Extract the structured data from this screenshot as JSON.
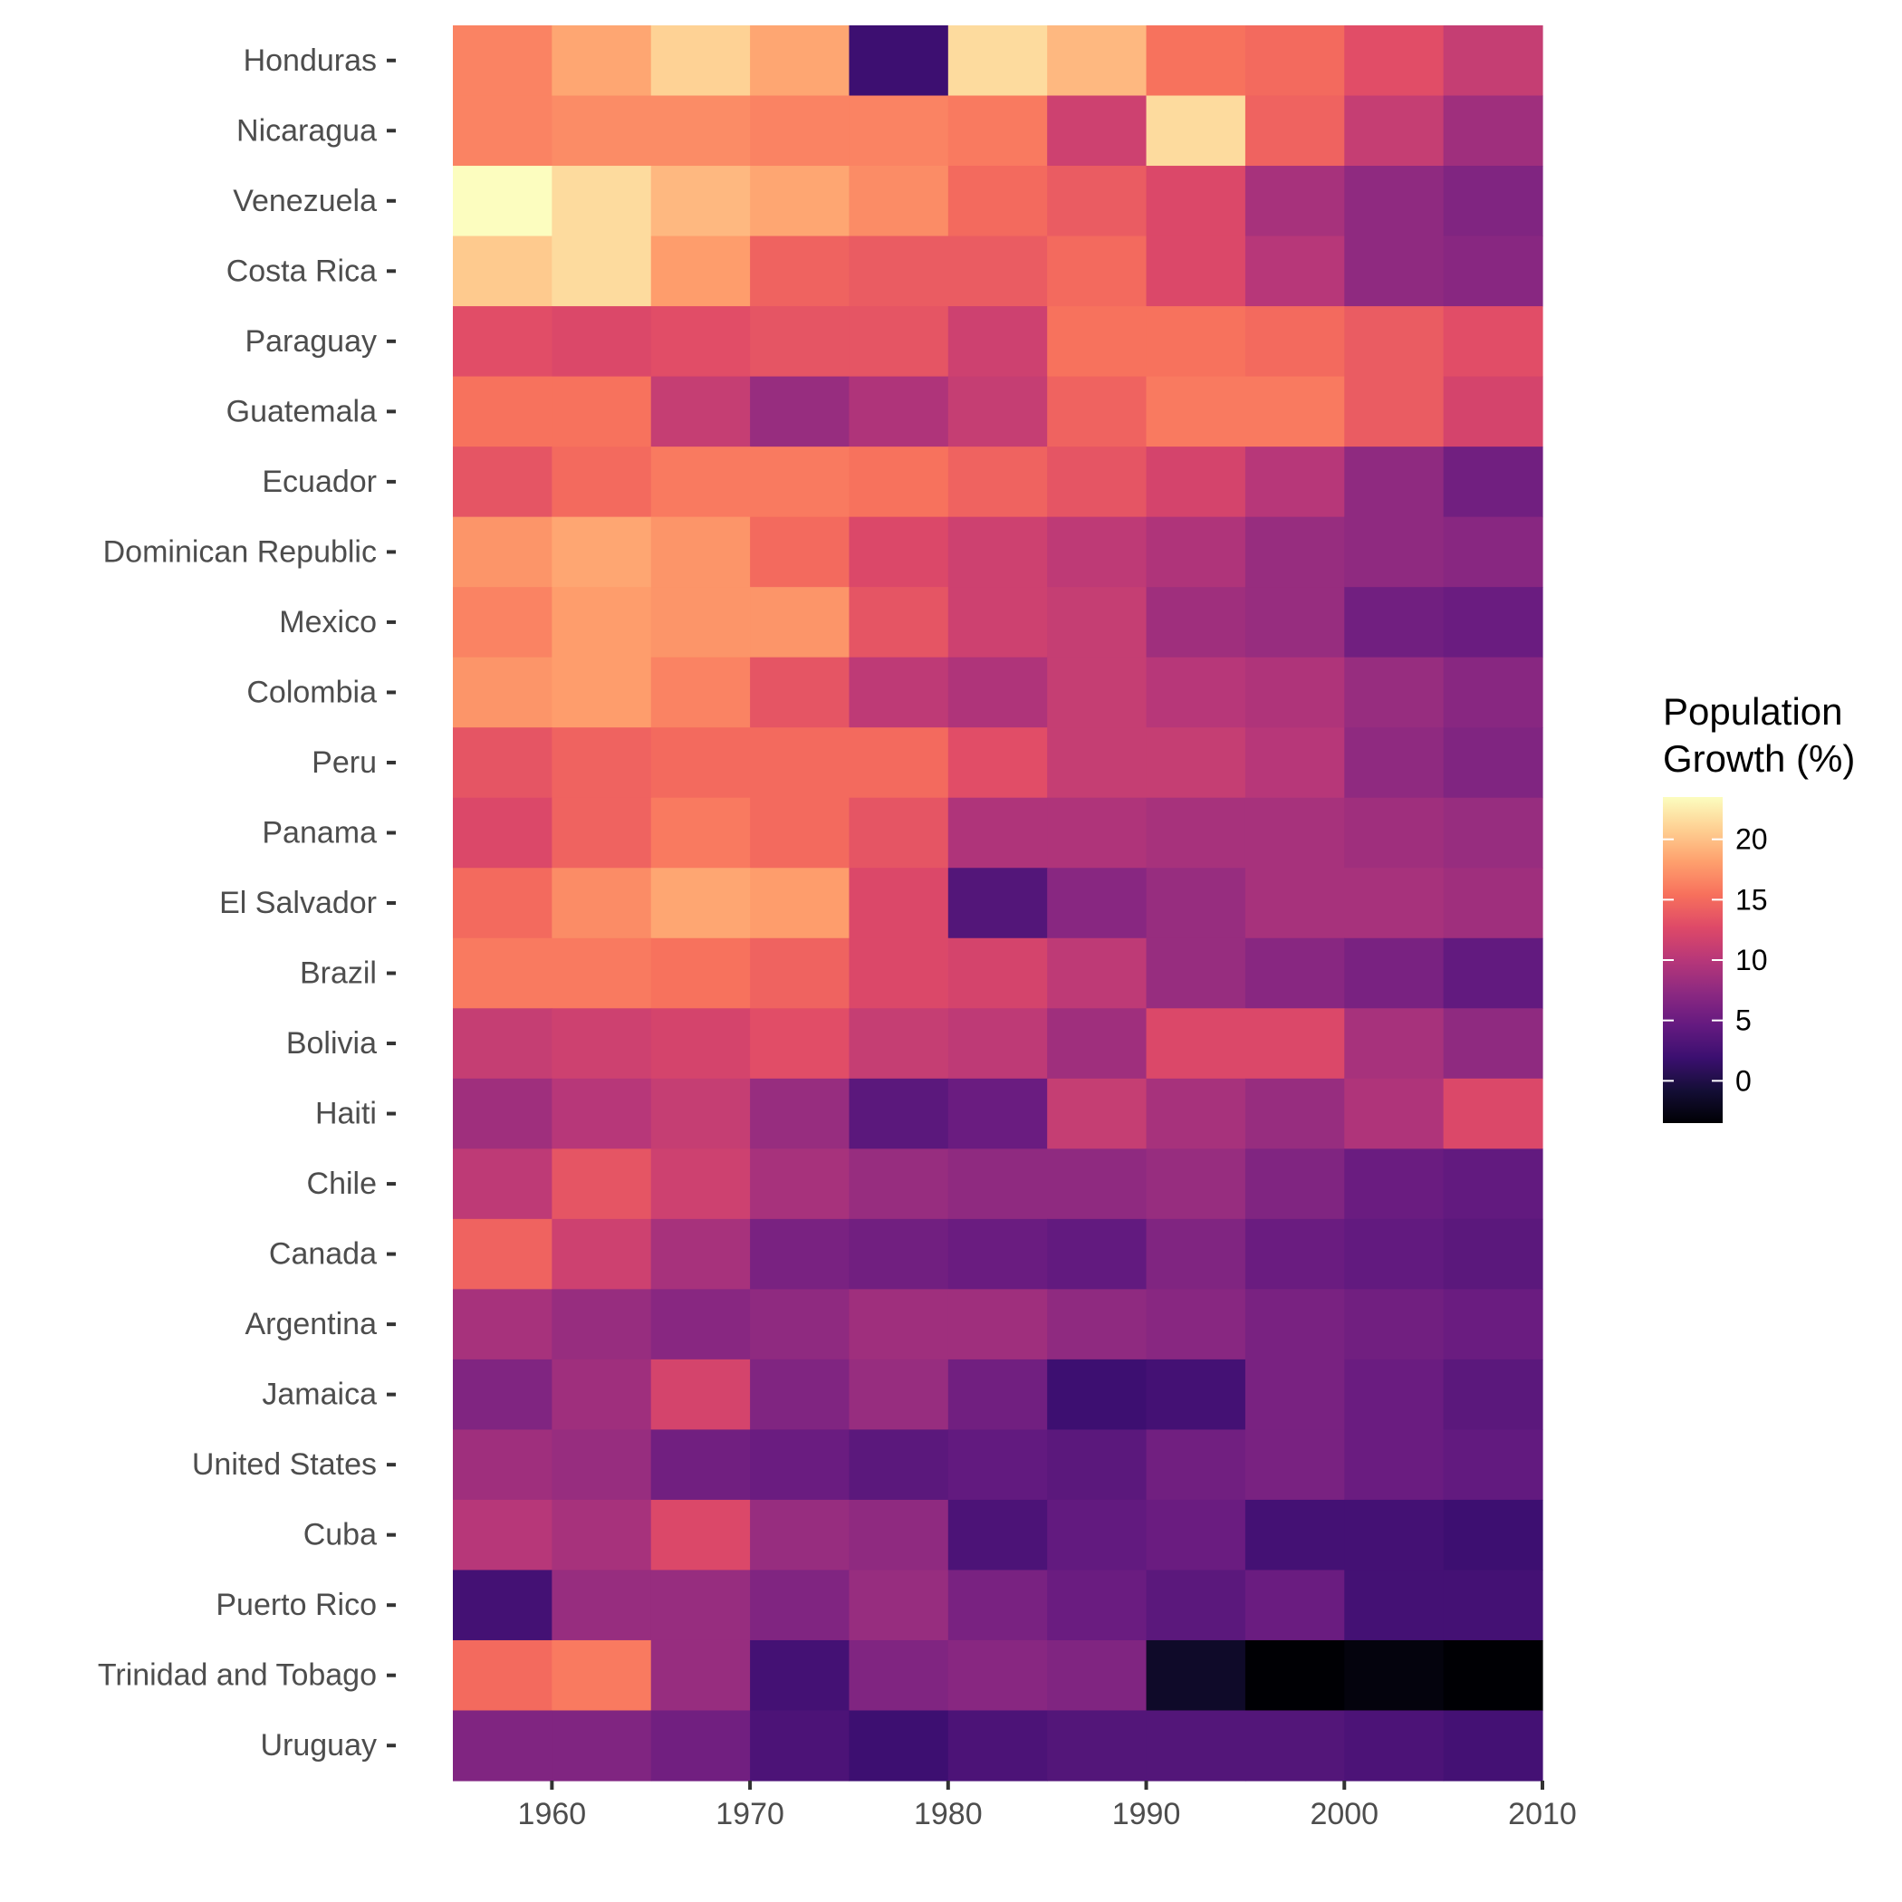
{
  "chart_data": {
    "type": "heatmap",
    "title": "",
    "xlabel": "",
    "ylabel": "",
    "x": [
      1955,
      1960,
      1965,
      1970,
      1975,
      1980,
      1985,
      1990,
      1995,
      2000,
      2005
    ],
    "x_ticks": [
      1960,
      1970,
      1980,
      1990,
      2000,
      2010
    ],
    "xlim": [
      1955,
      2010
    ],
    "y": [
      "Honduras",
      "Nicaragua",
      "Venezuela",
      "Costa Rica",
      "Paraguay",
      "Guatemala",
      "Ecuador",
      "Dominican Republic",
      "Mexico",
      "Colombia",
      "Peru",
      "Panama",
      "El Salvador",
      "Brazil",
      "Bolivia",
      "Haiti",
      "Chile",
      "Canada",
      "Argentina",
      "Jamaica",
      "United States",
      "Cuba",
      "Puerto Rico",
      "Trinidad and Tobago",
      "Uruguay"
    ],
    "values": [
      [
        16.5,
        18.5,
        21.0,
        18.5,
        2.0,
        21.5,
        19.5,
        15.5,
        15.0,
        13.0,
        11.0
      ],
      [
        16.5,
        17.0,
        17.0,
        16.5,
        16.5,
        16.0,
        11.5,
        21.5,
        14.5,
        11.0,
        8.5
      ],
      [
        23.5,
        21.5,
        19.5,
        18.5,
        17.0,
        15.0,
        14.0,
        12.5,
        9.0,
        7.5,
        6.5
      ],
      [
        20.5,
        21.5,
        18.0,
        14.5,
        14.0,
        14.0,
        15.0,
        12.5,
        10.0,
        7.5,
        7.0
      ],
      [
        13.0,
        12.5,
        13.0,
        13.5,
        13.5,
        11.5,
        15.5,
        15.5,
        15.0,
        14.0,
        13.0
      ],
      [
        15.5,
        15.5,
        11.0,
        8.0,
        9.5,
        11.0,
        14.5,
        16.0,
        16.0,
        14.0,
        12.0
      ],
      [
        13.5,
        15.0,
        16.0,
        16.0,
        15.5,
        14.5,
        13.5,
        12.0,
        10.0,
        7.5,
        5.5
      ],
      [
        17.5,
        18.5,
        17.5,
        15.0,
        12.5,
        11.5,
        10.5,
        9.5,
        8.0,
        7.5,
        7.0
      ],
      [
        16.5,
        18.0,
        17.5,
        17.5,
        13.5,
        11.5,
        11.0,
        8.5,
        8.0,
        5.5,
        5.0
      ],
      [
        17.5,
        18.0,
        16.5,
        13.5,
        10.5,
        9.5,
        11.0,
        10.0,
        9.5,
        8.0,
        7.0
      ],
      [
        13.5,
        14.5,
        15.0,
        15.0,
        15.0,
        13.0,
        11.0,
        11.0,
        10.0,
        7.5,
        6.5
      ],
      [
        12.5,
        14.5,
        16.0,
        15.0,
        13.5,
        9.5,
        9.5,
        9.0,
        9.0,
        8.5,
        8.0
      ],
      [
        15.0,
        17.0,
        18.5,
        18.0,
        12.5,
        3.5,
        7.0,
        8.0,
        9.0,
        9.0,
        8.5
      ],
      [
        16.0,
        16.0,
        15.5,
        14.5,
        12.5,
        12.0,
        10.5,
        8.0,
        7.0,
        6.0,
        4.5
      ],
      [
        11.0,
        11.5,
        12.0,
        13.0,
        11.0,
        10.5,
        8.5,
        12.5,
        12.5,
        9.0,
        7.5
      ],
      [
        8.5,
        10.0,
        11.0,
        8.0,
        4.0,
        5.0,
        11.0,
        9.0,
        8.0,
        9.5,
        12.5
      ],
      [
        10.5,
        13.5,
        11.5,
        9.0,
        8.0,
        7.5,
        7.5,
        8.0,
        6.5,
        5.0,
        4.5
      ],
      [
        14.5,
        11.5,
        9.0,
        6.0,
        5.5,
        5.0,
        4.5,
        6.5,
        5.0,
        4.5,
        4.0
      ],
      [
        9.0,
        8.0,
        7.0,
        7.5,
        8.5,
        8.5,
        7.5,
        7.0,
        6.0,
        5.5,
        5.0
      ],
      [
        6.5,
        8.5,
        12.0,
        6.5,
        8.0,
        5.5,
        2.0,
        2.5,
        6.0,
        5.0,
        4.0
      ],
      [
        8.5,
        8.0,
        5.5,
        5.0,
        4.0,
        4.5,
        4.0,
        5.5,
        6.0,
        5.0,
        4.5
      ],
      [
        10.0,
        9.0,
        12.5,
        8.0,
        7.5,
        3.0,
        4.5,
        5.0,
        2.5,
        2.5,
        2.0
      ],
      [
        2.5,
        8.0,
        8.0,
        6.5,
        8.0,
        6.0,
        5.0,
        4.0,
        5.0,
        2.5,
        2.5
      ],
      [
        15.0,
        16.0,
        8.0,
        2.5,
        6.5,
        7.0,
        6.5,
        -1.5,
        -3.5,
        -3.0,
        -3.5
      ],
      [
        6.5,
        6.5,
        5.5,
        3.0,
        2.0,
        3.0,
        3.5,
        3.5,
        3.5,
        3.0,
        2.5
      ]
    ],
    "colorscale": "magma",
    "zlim": [
      -3.5,
      23.5
    ],
    "legend": {
      "title_lines": [
        "Population",
        "Growth (%)"
      ],
      "ticks": [
        0,
        5,
        10,
        15,
        20
      ],
      "position": "right"
    },
    "grid": false
  }
}
